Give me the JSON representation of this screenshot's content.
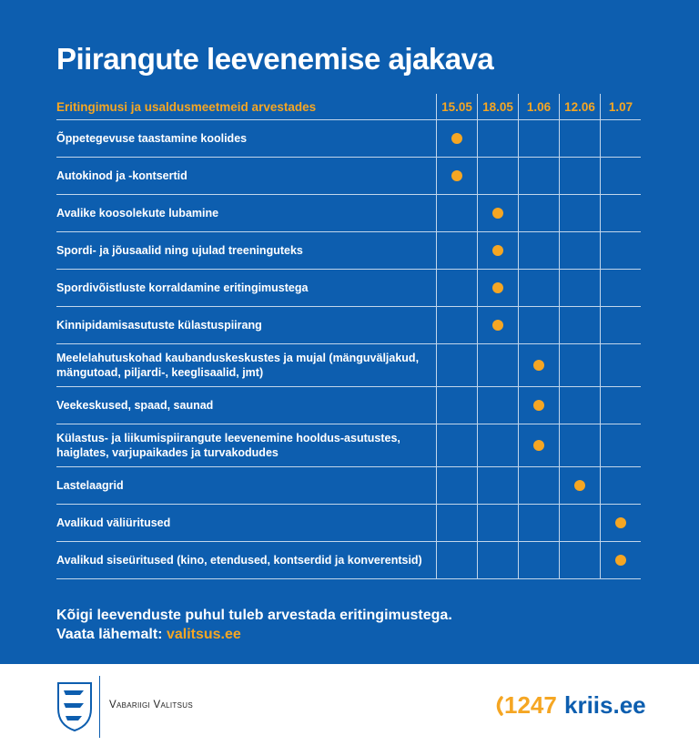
{
  "header": {
    "title": "Piirangute leevenemise ajakava"
  },
  "table": {
    "label_header": "Eritingimusi ja usaldusmeetmeid arvestades",
    "dates": [
      "15.05",
      "18.05",
      "1.06",
      "12.06",
      "1.07"
    ],
    "rows": [
      {
        "label": "Õppetegevuse taastamine koolides",
        "dot_column": "15.05"
      },
      {
        "label": "Autokinod ja -kontsertid",
        "dot_column": "15.05"
      },
      {
        "label": "Avalike koosolekute lubamine",
        "dot_column": "18.05"
      },
      {
        "label": "Spordi- ja jõusaalid ning ujulad treeninguteks",
        "dot_column": "18.05"
      },
      {
        "label": "Spordivõistluste korraldamine eritingimustega",
        "dot_column": "18.05"
      },
      {
        "label": "Kinnipidamisasutuste külastuspiirang",
        "dot_column": "18.05"
      },
      {
        "label": "Meelelahutuskohad kaubanduskeskustes ja mujal (mänguväljakud, mängutoad, piljardi-, keeglisaalid, jmt)",
        "dot_column": "1.06"
      },
      {
        "label": "Veekeskused, spaad, saunad",
        "dot_column": "1.06"
      },
      {
        "label": "Külastus- ja liikumispiirangute leevenemine hooldus-asutustes, haiglates, varjupaikades ja turvakodudes",
        "dot_column": "1.06"
      },
      {
        "label": "Lastelaagrid",
        "dot_column": "12.06"
      },
      {
        "label": "Avalikud väliüritused",
        "dot_column": "1.07"
      },
      {
        "label": "Avalikud siseüritused (kino, etendused, kontserdid ja konverentsid)",
        "dot_column": "1.07"
      }
    ]
  },
  "note": {
    "line1": "Kõigi leevenduste puhul tuleb arvestada eritingimustega.",
    "line2_prefix": "Vaata lähemalt:",
    "link": "valitsus.ee"
  },
  "footer": {
    "org": "Vabariigi Valitsus",
    "phone": "1247",
    "site": "kriis.ee"
  }
}
